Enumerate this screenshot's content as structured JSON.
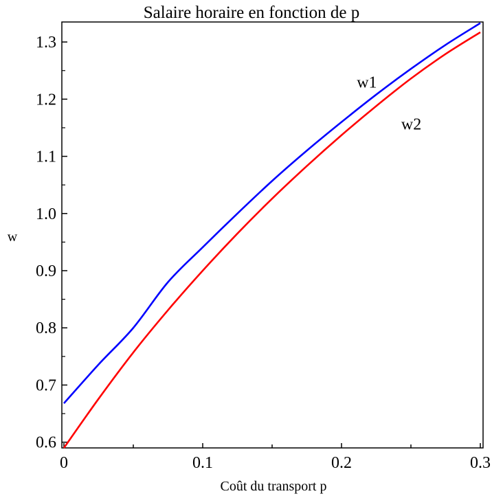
{
  "chart_data": {
    "type": "line",
    "title": "Salaire horaire en fonction de p",
    "xlabel": "Coût du transport p",
    "ylabel": "w",
    "xlim": [
      0,
      0.3
    ],
    "ylim": [
      0.59,
      1.335
    ],
    "xticks": [
      0,
      0.05,
      0.1,
      0.15,
      0.2,
      0.25,
      0.3
    ],
    "xtick_labels": [
      "0",
      "",
      "0.1",
      "",
      "0.2",
      "",
      "0.3"
    ],
    "yticks": [
      0.6,
      0.7,
      0.8,
      0.9,
      1.0,
      1.1,
      1.2,
      1.3
    ],
    "ytick_labels": [
      "0.6",
      "0.7",
      "0.8",
      "0.9",
      "1.0",
      "1.1",
      "1.2",
      "1.3"
    ],
    "grid": false,
    "series": [
      {
        "name": "w1",
        "color": "#0000ff",
        "x": [
          0,
          0.025,
          0.05,
          0.075,
          0.1,
          0.125,
          0.15,
          0.175,
          0.2,
          0.225,
          0.25,
          0.275,
          0.3
        ],
        "y": [
          0.668,
          0.736,
          0.8,
          0.88,
          0.941,
          1.0,
          1.057,
          1.11,
          1.16,
          1.208,
          1.253,
          1.295,
          1.333
        ]
      },
      {
        "name": "w2",
        "color": "#ff0000",
        "x": [
          0,
          0.025,
          0.05,
          0.075,
          0.1,
          0.125,
          0.15,
          0.175,
          0.2,
          0.225,
          0.25,
          0.275,
          0.3
        ],
        "y": [
          0.59,
          0.676,
          0.757,
          0.831,
          0.9,
          0.965,
          1.026,
          1.083,
          1.137,
          1.188,
          1.236,
          1.279,
          1.317
        ]
      }
    ],
    "annotations": [
      {
        "text": "w1",
        "x": 0.211,
        "y": 1.22
      },
      {
        "text": "w2",
        "x": 0.243,
        "y": 1.147
      }
    ]
  }
}
